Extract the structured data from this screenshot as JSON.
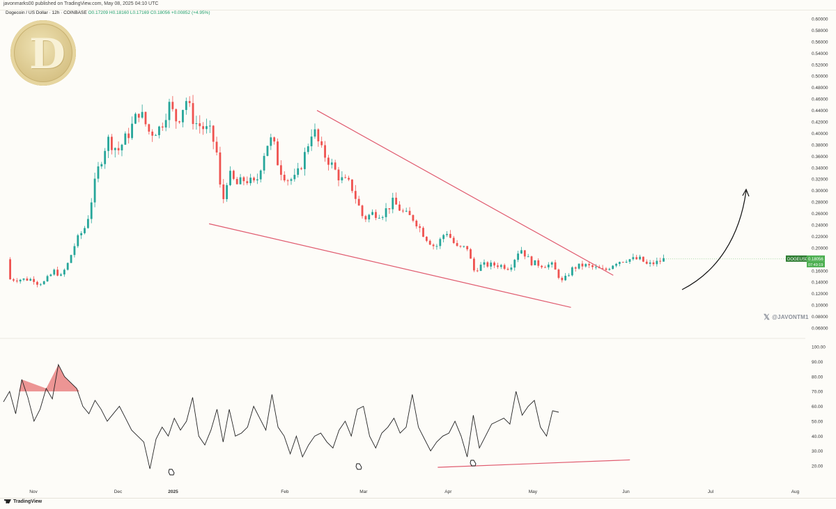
{
  "header": {
    "publisher": "javonmarks00 published on TradingView.com, May 08, 2025 04:10 UTC"
  },
  "symbol_line": {
    "name": "Dogecoin / US Dollar · 12h · COINBASE",
    "open": "O0.17209",
    "high": "H0.18160",
    "low": "L0.17169",
    "close": "C0.18056",
    "change": "+0.00852 (+4.95%)"
  },
  "price_tag": {
    "symbol": "DOGEUSD",
    "price": "0.18056",
    "countdown": "07:49:19"
  },
  "watermark": "@JAVONTM1",
  "footer": {
    "brand": "TradingView"
  },
  "colors": {
    "up": "#26a69a",
    "down": "#ef5350",
    "trendline": "#e05a6e",
    "tag": "#4caf50"
  },
  "chart_data": [
    {
      "type": "candlestick",
      "series": "DOGEUSD 12h",
      "y_ticks": [
        "0.60000",
        "0.58000",
        "0.56000",
        "0.54000",
        "0.52000",
        "0.50000",
        "0.48000",
        "0.46000",
        "0.44000",
        "0.42000",
        "0.40000",
        "0.38000",
        "0.36000",
        "0.34000",
        "0.32000",
        "0.30000",
        "0.28000",
        "0.26000",
        "0.24000",
        "0.22000",
        "0.20000",
        "0.16000",
        "0.14000",
        "0.12000",
        "0.10000",
        "0.08000",
        "0.06000"
      ],
      "ylim": [
        0.05,
        0.61
      ],
      "x_ticks": [
        "Nov",
        "Dec",
        "2025",
        "Feb",
        "Mar",
        "Apr",
        "May",
        "Jun",
        "Jul",
        "Aug"
      ],
      "price_path": [
        [
          0.0,
          0.145
        ],
        [
          0.2,
          0.138
        ],
        [
          0.5,
          0.14
        ],
        [
          1.0,
          0.16
        ],
        [
          1.3,
          0.15
        ],
        [
          1.6,
          0.17
        ],
        [
          2.0,
          0.21
        ],
        [
          2.5,
          0.24
        ],
        [
          3.0,
          0.33
        ],
        [
          3.5,
          0.39
        ],
        [
          4.0,
          0.37
        ],
        [
          4.5,
          0.4
        ],
        [
          5.0,
          0.44
        ],
        [
          5.5,
          0.4
        ],
        [
          6.0,
          0.41
        ],
        [
          6.4,
          0.45
        ],
        [
          6.8,
          0.42
        ],
        [
          7.2,
          0.46
        ],
        [
          7.6,
          0.42
        ],
        [
          8.0,
          0.41
        ],
        [
          8.4,
          0.4
        ],
        [
          8.7,
          0.36
        ],
        [
          8.9,
          0.27
        ],
        [
          9.2,
          0.33
        ],
        [
          9.6,
          0.31
        ],
        [
          10.0,
          0.32
        ],
        [
          10.5,
          0.31
        ],
        [
          11.0,
          0.38
        ],
        [
          11.3,
          0.39
        ],
        [
          11.6,
          0.34
        ],
        [
          12.0,
          0.32
        ],
        [
          12.4,
          0.32
        ],
        [
          12.8,
          0.36
        ],
        [
          13.2,
          0.41
        ],
        [
          13.6,
          0.37
        ],
        [
          14.0,
          0.35
        ],
        [
          14.5,
          0.32
        ],
        [
          15.0,
          0.31
        ],
        [
          15.3,
          0.28
        ],
        [
          15.6,
          0.25
        ],
        [
          16.0,
          0.26
        ],
        [
          16.5,
          0.26
        ],
        [
          17.0,
          0.28
        ],
        [
          17.5,
          0.26
        ],
        [
          18.0,
          0.25
        ],
        [
          18.5,
          0.22
        ],
        [
          19.0,
          0.2
        ],
        [
          19.5,
          0.23
        ],
        [
          20.0,
          0.2
        ],
        [
          20.5,
          0.2
        ],
        [
          20.8,
          0.16
        ],
        [
          21.2,
          0.17
        ],
        [
          21.6,
          0.17
        ],
        [
          22.0,
          0.17
        ],
        [
          22.5,
          0.165
        ],
        [
          23.0,
          0.2
        ],
        [
          23.5,
          0.175
        ],
        [
          24.0,
          0.17
        ],
        [
          24.5,
          0.17
        ],
        [
          25.0,
          0.14
        ],
        [
          25.5,
          0.165
        ],
        [
          26.0,
          0.17
        ],
        [
          26.5,
          0.165
        ],
        [
          27.0,
          0.16
        ],
        [
          27.5,
          0.175
        ],
        [
          28.0,
          0.18
        ],
        [
          28.3,
          0.18
        ],
        [
          28.7,
          0.18
        ],
        [
          29.0,
          0.17
        ],
        [
          29.5,
          0.175
        ],
        [
          29.8,
          0.18
        ]
      ],
      "trendlines": [
        {
          "from": [
            13.4,
            0.44
          ],
          "to": [
            27.4,
            0.152
          ]
        },
        {
          "from": [
            8.3,
            0.242
          ],
          "to": [
            25.4,
            0.096
          ]
        }
      ],
      "last_price": 0.18056
    },
    {
      "type": "line",
      "series": "RSI",
      "y_ticks": [
        "100.00",
        "90.00",
        "80.00",
        "70.00",
        "60.00",
        "50.00",
        "40.00",
        "30.00",
        "20.00"
      ],
      "ylim": [
        12,
        104
      ],
      "values": [
        63,
        70,
        55,
        78,
        66,
        50,
        58,
        72,
        65,
        88,
        80,
        76,
        72,
        60,
        55,
        64,
        58,
        50,
        55,
        60,
        52,
        44,
        40,
        36,
        18,
        38,
        46,
        40,
        52,
        44,
        50,
        66,
        40,
        34,
        44,
        58,
        36,
        58,
        40,
        42,
        46,
        60,
        52,
        44,
        68,
        46,
        40,
        28,
        40,
        26,
        34,
        40,
        42,
        36,
        32,
        44,
        50,
        40,
        58,
        60,
        40,
        32,
        42,
        46,
        52,
        42,
        46,
        68,
        46,
        38,
        30,
        36,
        40,
        42,
        50,
        40,
        26,
        54,
        32,
        40,
        48,
        50,
        52,
        48,
        70,
        54,
        60,
        64,
        46,
        40,
        57,
        56
      ],
      "trendline": {
        "from": [
          19.6,
          19
        ],
        "to": [
          27.2,
          24
        ]
      },
      "markers_at": [
        19.7,
        25.8,
        27.1
      ]
    }
  ]
}
